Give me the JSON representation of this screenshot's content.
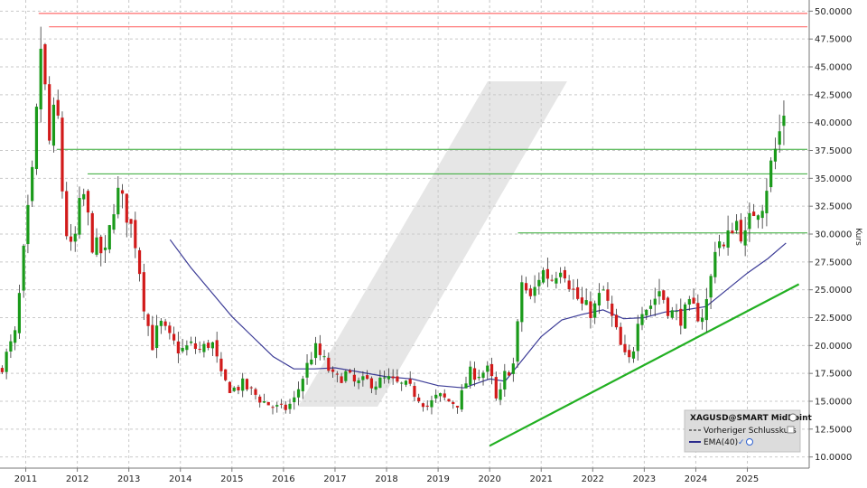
{
  "chart_data": {
    "type": "candlestick",
    "title": "XAGUSD@SMART MidPoint",
    "xlabel": "",
    "ylabel": "Kurs",
    "x_tick_labels": [
      "2011",
      "2012",
      "2013",
      "2014",
      "2015",
      "2016",
      "2017",
      "2018",
      "2019",
      "2020",
      "2021",
      "2022",
      "2023",
      "2024",
      "2025"
    ],
    "y_tick_labels": [
      "10.0000",
      "12.5000",
      "15.0000",
      "17.5000",
      "20.0000",
      "22.5000",
      "25.0000",
      "27.5000",
      "30.0000",
      "32.5000",
      "35.0000",
      "37.5000",
      "40.0000",
      "42.5000",
      "45.0000",
      "47.5000",
      "50.0000"
    ],
    "ylim": [
      9.0,
      51.0
    ],
    "xlim": [
      2010.5,
      2026.2
    ],
    "grid": true,
    "legend": {
      "placement": "bottom-right",
      "title": "XAGUSD@SMART MidPoint",
      "entries": [
        {
          "name": "Vorheriger Schlusskurs",
          "color": "#555555",
          "style": "dashed"
        },
        {
          "name": "EMA(40)",
          "color": "#2a2a8c",
          "style": "solid"
        }
      ]
    },
    "colors": {
      "up": "#1a9a1a",
      "down": "#d11a1a",
      "ema": "#3b3b96",
      "resistance": "#ff7a7a",
      "level": "#32a832",
      "trend": "#22b022"
    },
    "anchors": [
      [
        2010.5,
        17.8
      ],
      [
        2010.8,
        21.0
      ],
      [
        2011.0,
        30.0
      ],
      [
        2011.15,
        36.0
      ],
      [
        2011.3,
        47.5
      ],
      [
        2011.45,
        38.0
      ],
      [
        2011.6,
        42.0
      ],
      [
        2011.75,
        31.0
      ],
      [
        2011.9,
        28.0
      ],
      [
        2012.1,
        34.0
      ],
      [
        2012.3,
        29.0
      ],
      [
        2012.55,
        28.0
      ],
      [
        2012.75,
        34.0
      ],
      [
        2012.95,
        32.0
      ],
      [
        2013.15,
        29.0
      ],
      [
        2013.3,
        23.5
      ],
      [
        2013.45,
        20.0
      ],
      [
        2013.6,
        22.0
      ],
      [
        2013.8,
        20.5
      ],
      [
        2014.0,
        19.5
      ],
      [
        2014.2,
        20.0
      ],
      [
        2014.4,
        19.5
      ],
      [
        2014.6,
        20.5
      ],
      [
        2014.8,
        17.0
      ],
      [
        2015.0,
        16.0
      ],
      [
        2015.2,
        16.5
      ],
      [
        2015.4,
        15.8
      ],
      [
        2015.6,
        15.0
      ],
      [
        2015.8,
        14.5
      ],
      [
        2016.0,
        14.2
      ],
      [
        2016.2,
        15.0
      ],
      [
        2016.4,
        17.5
      ],
      [
        2016.6,
        19.8
      ],
      [
        2016.8,
        18.5
      ],
      [
        2017.0,
        16.8
      ],
      [
        2017.2,
        17.5
      ],
      [
        2017.4,
        16.5
      ],
      [
        2017.6,
        16.8
      ],
      [
        2017.8,
        16.6
      ],
      [
        2018.0,
        17.0
      ],
      [
        2018.2,
        16.5
      ],
      [
        2018.4,
        16.3
      ],
      [
        2018.6,
        15.5
      ],
      [
        2018.8,
        14.5
      ],
      [
        2019.0,
        15.5
      ],
      [
        2019.2,
        15.0
      ],
      [
        2019.4,
        14.8
      ],
      [
        2019.6,
        17.5
      ],
      [
        2019.8,
        17.5
      ],
      [
        2020.0,
        17.8
      ],
      [
        2020.15,
        14.5
      ],
      [
        2020.3,
        17.5
      ],
      [
        2020.5,
        18.5
      ],
      [
        2020.6,
        26.0
      ],
      [
        2020.8,
        24.0
      ],
      [
        2021.0,
        26.8
      ],
      [
        2021.2,
        26.0
      ],
      [
        2021.4,
        27.5
      ],
      [
        2021.6,
        25.0
      ],
      [
        2021.8,
        23.5
      ],
      [
        2022.0,
        23.0
      ],
      [
        2022.2,
        25.0
      ],
      [
        2022.4,
        22.0
      ],
      [
        2022.6,
        19.0
      ],
      [
        2022.75,
        18.5
      ],
      [
        2022.9,
        23.5
      ],
      [
        2023.1,
        23.5
      ],
      [
        2023.3,
        25.0
      ],
      [
        2023.5,
        23.0
      ],
      [
        2023.7,
        22.5
      ],
      [
        2023.9,
        23.5
      ],
      [
        2024.1,
        22.5
      ],
      [
        2024.25,
        24.5
      ],
      [
        2024.4,
        30.0
      ],
      [
        2024.55,
        28.5
      ],
      [
        2024.75,
        31.5
      ],
      [
        2024.95,
        29.5
      ],
      [
        2025.1,
        32.0
      ],
      [
        2025.3,
        33.0
      ],
      [
        2025.45,
        36.0
      ],
      [
        2025.6,
        38.5
      ],
      [
        2025.75,
        42.0
      ]
    ],
    "ema_anchors": [
      [
        2013.8,
        29.5
      ],
      [
        2014.2,
        27.0
      ],
      [
        2014.6,
        24.8
      ],
      [
        2015.0,
        22.6
      ],
      [
        2015.4,
        20.8
      ],
      [
        2015.8,
        19.0
      ],
      [
        2016.2,
        17.9
      ],
      [
        2016.6,
        17.9
      ],
      [
        2017.0,
        18.0
      ],
      [
        2017.5,
        17.6
      ],
      [
        2018.0,
        17.2
      ],
      [
        2018.5,
        17.0
      ],
      [
        2019.0,
        16.4
      ],
      [
        2019.5,
        16.2
      ],
      [
        2020.0,
        17.0
      ],
      [
        2020.3,
        16.8
      ],
      [
        2020.6,
        18.5
      ],
      [
        2021.0,
        20.8
      ],
      [
        2021.4,
        22.3
      ],
      [
        2021.8,
        22.8
      ],
      [
        2022.2,
        23.2
      ],
      [
        2022.6,
        22.4
      ],
      [
        2023.0,
        22.5
      ],
      [
        2023.4,
        23.0
      ],
      [
        2023.8,
        23.2
      ],
      [
        2024.2,
        23.5
      ],
      [
        2024.6,
        25.0
      ],
      [
        2025.0,
        26.5
      ],
      [
        2025.4,
        27.8
      ],
      [
        2025.75,
        29.2
      ]
    ],
    "resistance_levels": [
      49.8,
      48.6
    ],
    "horizontal_levels": [
      {
        "from": 2011.6,
        "value": 37.6
      },
      {
        "from": 2012.2,
        "value": 35.4
      },
      {
        "from": 2020.55,
        "value": 30.1
      }
    ],
    "trendline": {
      "x": [
        2020.0,
        2026.0
      ],
      "y": [
        11.0,
        25.5
      ]
    }
  }
}
